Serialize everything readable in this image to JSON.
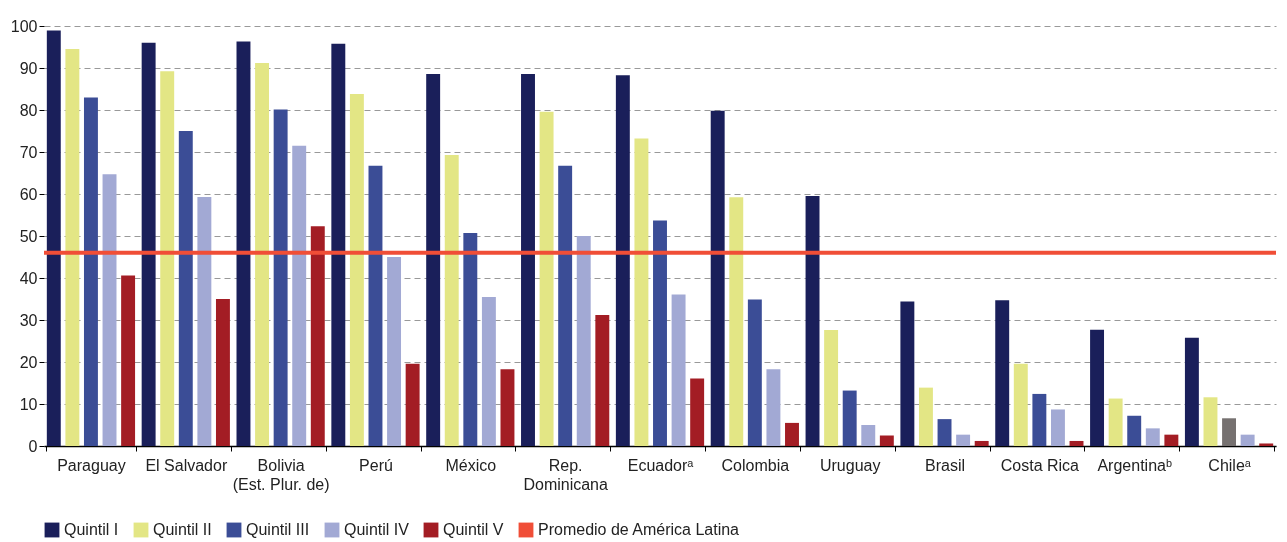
{
  "chart_data": {
    "type": "bar",
    "categories": [
      "Paraguay",
      "El Salvador",
      "Bolivia\n(Est. Plur. de)",
      "Perú",
      "México",
      "Rep.\nDominicana",
      "Ecuadorᵃ",
      "Colombia",
      "Uruguay",
      "Brasil",
      "Costa Rica",
      "Argentinaᵇ",
      "Chileᵃ"
    ],
    "series": [
      {
        "name": "Quintil I",
        "color": "#1a1f5a",
        "values": [
          98.9,
          96,
          96.3,
          95.8,
          88.6,
          88.6,
          88.3,
          79.8,
          59.5,
          34.4,
          34.7,
          27.7,
          25.8
        ]
      },
      {
        "name": "Quintil II",
        "color": "#e3e685",
        "values": [
          94.5,
          89.2,
          91.2,
          83.8,
          69.3,
          79.6,
          73.2,
          59.2,
          27.6,
          13.9,
          19.6,
          11.3,
          11.6
        ]
      },
      {
        "name": "Quintil III",
        "color": "#3b4d96",
        "colors": [
          "#3b4d96",
          "#3b4d96",
          "#3b4d96",
          "#3b4d96",
          "#3b4d96",
          "#3b4d96",
          "#3b4d96",
          "#3b4d96",
          "#3b4d96",
          "#3b4d96",
          "#3b4d96",
          "#3b4d96",
          "#767170"
        ],
        "values": [
          83,
          75,
          80.1,
          66.7,
          50.7,
          66.7,
          53.7,
          34.9,
          13.2,
          6.4,
          12.4,
          7.2,
          6.6
        ]
      },
      {
        "name": "Quintil IV",
        "color": "#a2a9d4",
        "values": [
          64.7,
          59.3,
          71.5,
          45,
          35.5,
          50,
          36.1,
          18.3,
          5,
          2.7,
          8.7,
          4.2,
          2.7
        ]
      },
      {
        "name": "Quintil V",
        "color": "#a31d24",
        "values": [
          40.6,
          35,
          52.3,
          19.6,
          18.3,
          31.2,
          16.1,
          5.5,
          2.5,
          1.2,
          1.2,
          2.7,
          0.6
        ]
      }
    ],
    "ylim": [
      0,
      100
    ],
    "yticks": [
      0,
      10,
      20,
      30,
      40,
      50,
      60,
      70,
      80,
      90,
      100
    ],
    "ref_lines": [
      {
        "axis": "y",
        "value": 46,
        "label": "Promedio de América Latina",
        "color": "#f04e37"
      }
    ],
    "grid": "y",
    "legend": "bottom"
  }
}
